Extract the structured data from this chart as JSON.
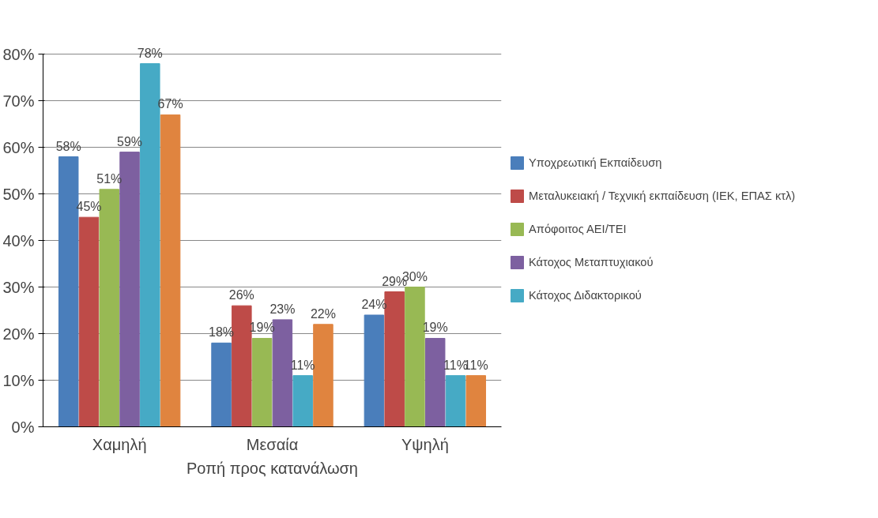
{
  "chart_data": {
    "type": "bar",
    "xlabel": "Ροπή προς κατανάλωση",
    "categories": [
      "Χαμηλή",
      "Μεσαία",
      "Υψηλή"
    ],
    "ylim": [
      0,
      80
    ],
    "yticks": [
      {
        "value": 0,
        "label": "0%"
      },
      {
        "value": 10,
        "label": "10%"
      },
      {
        "value": 20,
        "label": "20%"
      },
      {
        "value": 30,
        "label": "30%"
      },
      {
        "value": 40,
        "label": "40%"
      },
      {
        "value": 50,
        "label": "50%"
      },
      {
        "value": 60,
        "label": "60%"
      },
      {
        "value": 70,
        "label": "70%"
      },
      {
        "value": 80,
        "label": "80%"
      }
    ],
    "grid": "y",
    "legend": "right",
    "series": [
      {
        "name": "Υποχρεωτική Εκπαίδευση",
        "color": "#4a7ebb",
        "values": [
          58,
          18,
          24
        ],
        "value_labels": [
          "58%",
          "18%",
          "24%"
        ]
      },
      {
        "name": "Μεταλυκειακή / Τεχνική εκπαίδευση (ΙΕΚ, ΕΠΑΣ κτλ)",
        "color": "#be4b48",
        "values": [
          45,
          26,
          29
        ],
        "value_labels": [
          "45%",
          "26%",
          "29%"
        ]
      },
      {
        "name": "Απόφοιτος ΑΕΙ/ΤΕΙ",
        "color": "#98b954",
        "values": [
          51,
          19,
          30
        ],
        "value_labels": [
          "51%",
          "19%",
          "30%"
        ]
      },
      {
        "name": "Κάτοχος Μεταπτυχιακού",
        "color": "#7d60a0",
        "values": [
          59,
          23,
          19
        ],
        "value_labels": [
          "59%",
          "23%",
          "19%"
        ]
      },
      {
        "name": "Κάτοχος Διδακτορικού",
        "color": "#46aac5",
        "values": [
          78,
          11,
          11
        ],
        "value_labels": [
          "78%",
          "11%",
          "11%"
        ]
      },
      {
        "color": "#e0843f",
        "values": [
          67,
          22,
          11
        ],
        "value_labels": [
          "67%",
          "22%",
          "11%"
        ]
      }
    ]
  }
}
